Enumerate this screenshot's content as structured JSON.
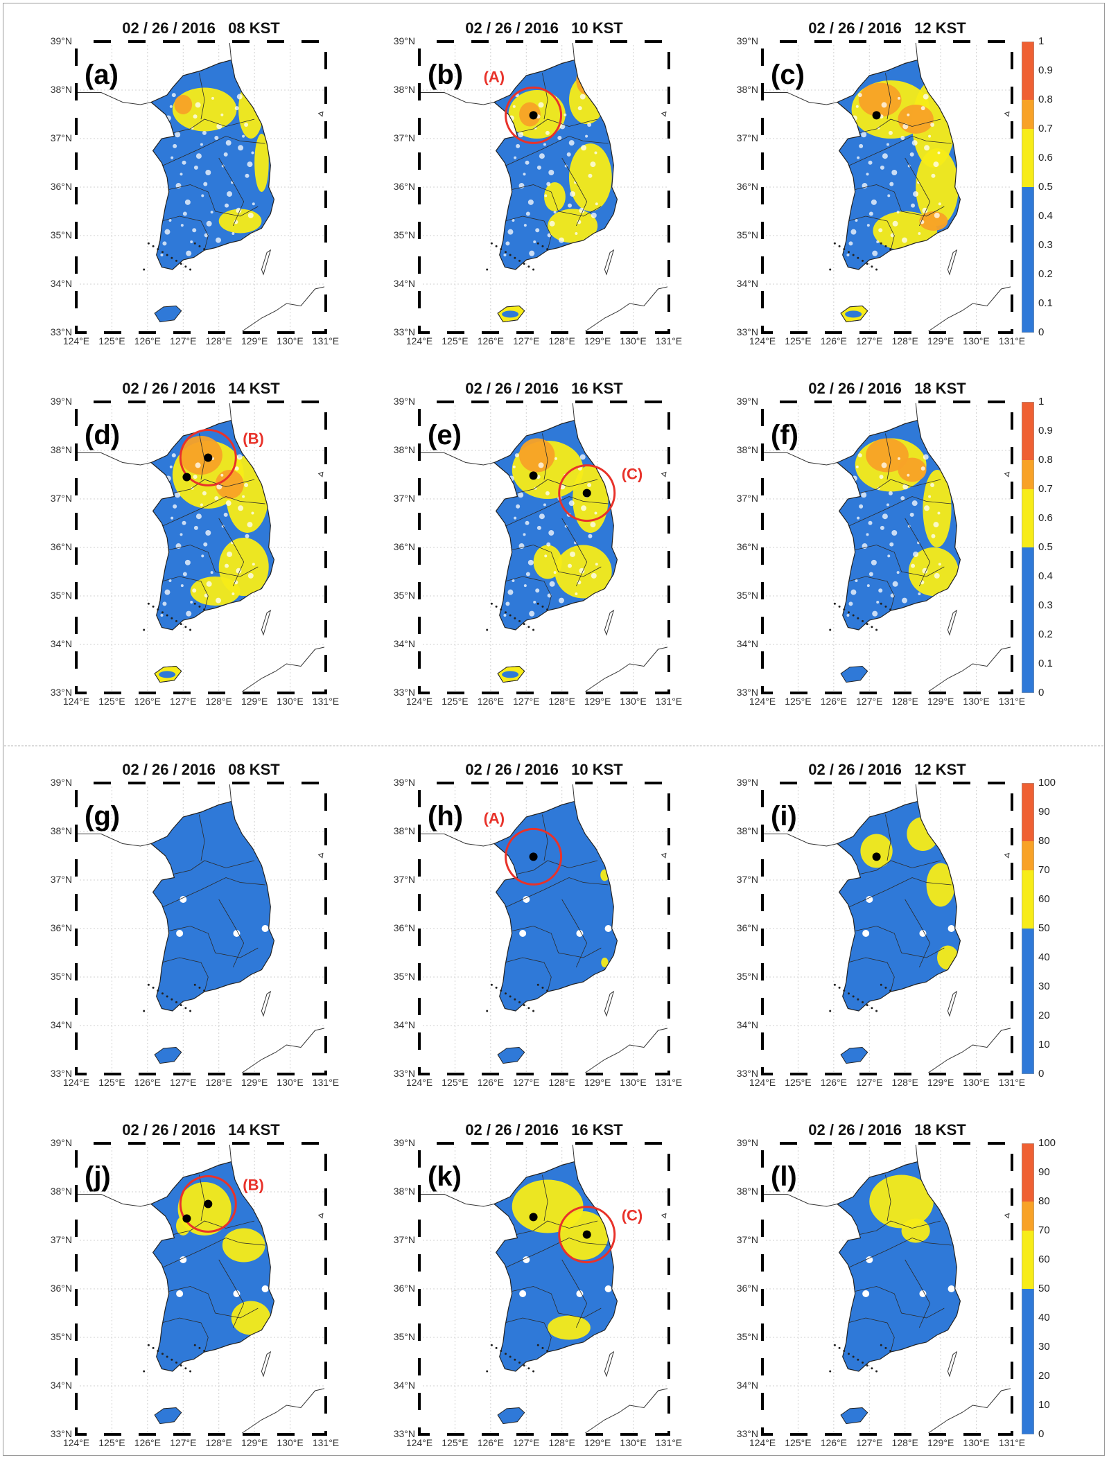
{
  "colors": {
    "blue": "#2f79d8",
    "yellow": "#f7ec18",
    "orange": "#f8a227",
    "red": "#ef6033",
    "circle": "#e8322a"
  },
  "sections": [
    {
      "id": "top",
      "colorbar": {
        "ticks": [
          "1",
          "0.9",
          "0.8",
          "0.7",
          "0.6",
          "0.5",
          "0.4",
          "0.3",
          "0.2",
          "0.1",
          "0"
        ],
        "bands": [
          {
            "from": 0,
            "to": 0.5,
            "color": "#2f79d8"
          },
          {
            "from": 0.5,
            "to": 0.7,
            "color": "#f7ec18"
          },
          {
            "from": 0.7,
            "to": 0.8,
            "color": "#f8a227"
          },
          {
            "from": 0.8,
            "to": 1,
            "color": "#ef6033"
          }
        ]
      },
      "panels": [
        {
          "id": "a",
          "label": "(a)",
          "title": "02 / 26 / 2016   08 KST",
          "markers": []
        },
        {
          "id": "b",
          "label": "(b)",
          "title": "02 / 26 / 2016   10 KST",
          "markers": [
            {
              "name": "A",
              "text": "(A)",
              "lon": 127.2,
              "lat": 37.48,
              "circle": true
            }
          ]
        },
        {
          "id": "c",
          "label": "(c)",
          "title": "02 / 26 / 2016   12 KST",
          "markers": [
            {
              "name": "A",
              "text": "",
              "lon": 127.2,
              "lat": 37.48,
              "circle": false
            }
          ]
        },
        {
          "id": "d",
          "label": "(d)",
          "title": "02 / 26 / 2016   14 KST",
          "markers": [
            {
              "name": "B",
              "text": "(B)",
              "lon": 127.7,
              "lat": 37.85,
              "circle": true
            },
            {
              "name": "A",
              "text": "",
              "lon": 127.1,
              "lat": 37.45,
              "circle": false
            }
          ]
        },
        {
          "id": "e",
          "label": "(e)",
          "title": "02 / 26 / 2016   16 KST",
          "markers": [
            {
              "name": "C",
              "text": "(C)",
              "lon": 128.7,
              "lat": 37.12,
              "circle": true
            },
            {
              "name": "A",
              "text": "",
              "lon": 127.2,
              "lat": 37.48,
              "circle": false
            }
          ]
        },
        {
          "id": "f",
          "label": "(f)",
          "title": "02 / 26 / 2016   18 KST",
          "markers": []
        }
      ]
    },
    {
      "id": "bottom",
      "colorbar": {
        "ticks": [
          "100",
          "90",
          "80",
          "70",
          "60",
          "50",
          "40",
          "30",
          "20",
          "10",
          "0"
        ],
        "bands": [
          {
            "from": 0,
            "to": 50,
            "color": "#2f79d8"
          },
          {
            "from": 50,
            "to": 70,
            "color": "#f7ec18"
          },
          {
            "from": 70,
            "to": 80,
            "color": "#f8a227"
          },
          {
            "from": 80,
            "to": 100,
            "color": "#ef6033"
          }
        ]
      },
      "panels": [
        {
          "id": "g",
          "label": "(g)",
          "title": "02 / 26 / 2016   08 KST",
          "markers": []
        },
        {
          "id": "h",
          "label": "(h)",
          "title": "02 / 26 / 2016   10 KST",
          "markers": [
            {
              "name": "A",
              "text": "(A)",
              "lon": 127.2,
              "lat": 37.48,
              "circle": true
            }
          ]
        },
        {
          "id": "i",
          "label": "(i)",
          "title": "02 / 26 / 2016   12 KST",
          "markers": [
            {
              "name": "A",
              "text": "",
              "lon": 127.2,
              "lat": 37.48,
              "circle": false
            }
          ]
        },
        {
          "id": "j",
          "label": "(j)",
          "title": "02 / 26 / 2016   14 KST",
          "markers": [
            {
              "name": "B",
              "text": "(B)",
              "lon": 127.7,
              "lat": 37.75,
              "circle": true
            },
            {
              "name": "A",
              "text": "",
              "lon": 127.1,
              "lat": 37.45,
              "circle": false
            }
          ]
        },
        {
          "id": "k",
          "label": "(k)",
          "title": "02 / 26 / 2016   16 KST",
          "markers": [
            {
              "name": "C",
              "text": "(C)",
              "lon": 128.7,
              "lat": 37.12,
              "circle": true
            },
            {
              "name": "A",
              "text": "",
              "lon": 127.2,
              "lat": 37.48,
              "circle": false
            }
          ]
        },
        {
          "id": "l",
          "label": "(l)",
          "title": "02 / 26 / 2016   18 KST",
          "markers": []
        }
      ]
    }
  ],
  "axes": {
    "lat_ticks": [
      "39°N",
      "38°N",
      "37°N",
      "36°N",
      "35°N",
      "34°N",
      "33°N"
    ],
    "lon_ticks": [
      "124°E",
      "125°E",
      "126°E",
      "127°E",
      "128°E",
      "129°E",
      "130°E",
      "131°E"
    ],
    "lon_range": [
      124,
      131
    ],
    "lat_range": [
      33,
      39
    ]
  }
}
